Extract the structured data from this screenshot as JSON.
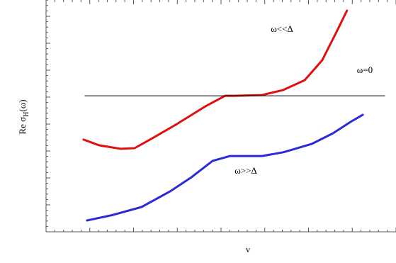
{
  "chart_data": {
    "type": "line",
    "x_label": "ν",
    "y_label": {
      "main": "Re σ",
      "subscript": "H",
      "tail": "(ω)"
    },
    "annotations": [
      "ω<<Δ",
      "ω=0",
      "ω>>Δ"
    ],
    "xlim": [
      0,
      100
    ],
    "ylim": [
      0,
      100
    ],
    "series": [
      {
        "color": "#e01010",
        "x": [
          10.7,
          15.2,
          21.3,
          25.3,
          30.4,
          37.4,
          45.5,
          51.2,
          53.6,
          61.7,
          67.8,
          73.9,
          78.9,
          83.0,
          86.0
        ],
        "values": [
          39.8,
          37.3,
          35.8,
          36.1,
          40.4,
          46.5,
          54.1,
          58.7,
          58.7,
          59.0,
          61.2,
          65.4,
          74.0,
          86.2,
          95.4
        ]
      },
      {
        "color": "#2a2ad8",
        "x": [
          11.7,
          19.2,
          27.3,
          35.4,
          41.5,
          47.6,
          52.6,
          61.7,
          67.8,
          75.9,
          82.0,
          87.0,
          90.5
        ],
        "values": [
          4.9,
          7.3,
          10.7,
          17.4,
          23.5,
          30.6,
          32.7,
          32.7,
          34.3,
          37.9,
          42.5,
          47.4,
          50.5
        ]
      },
      {
        "color": "#000000",
        "x": [
          11.1,
          96.8
        ],
        "values": [
          58.7,
          58.7
        ]
      }
    ]
  }
}
